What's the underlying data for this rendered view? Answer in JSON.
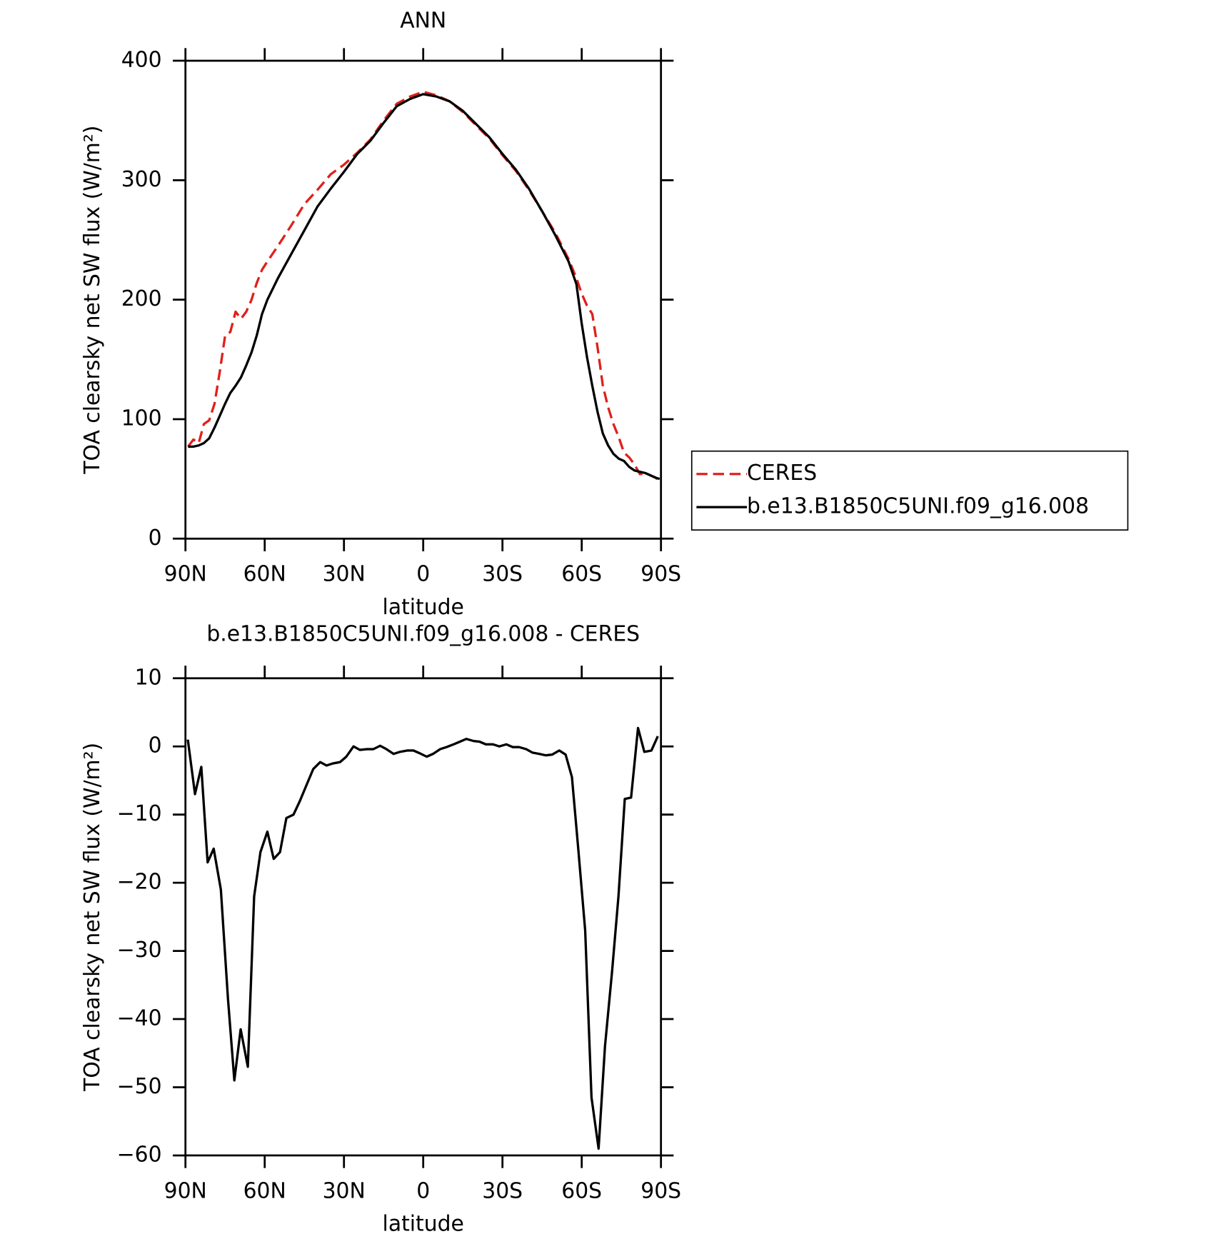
{
  "chart_data": [
    {
      "type": "line",
      "title": "ANN",
      "xlabel": "latitude",
      "ylabel": "TOA clearsky net SW flux (W/m²)",
      "xlim": [
        90,
        -90
      ],
      "xticks": [
        {
          "value": 90,
          "label": "90N"
        },
        {
          "value": 60,
          "label": "60N"
        },
        {
          "value": 30,
          "label": "30N"
        },
        0,
        {
          "value": -30,
          "label": "30S"
        },
        {
          "value": -60,
          "label": "60S"
        },
        {
          "value": -90,
          "label": "90S"
        }
      ],
      "ylim": [
        0,
        400
      ],
      "yticks": [
        0,
        100,
        200,
        300,
        400
      ],
      "legend": "right",
      "x": [
        89,
        87,
        85,
        83,
        81,
        79,
        77,
        75,
        73,
        71,
        69,
        67,
        65,
        63,
        61,
        59,
        55,
        50,
        45,
        40,
        35,
        30,
        25,
        20,
        15,
        10,
        5,
        0,
        -5,
        -10,
        -15,
        -20,
        -25,
        -30,
        -35,
        -40,
        -45,
        -50,
        -55,
        -58,
        -60,
        -62,
        -64,
        -66,
        -68,
        -70,
        -72,
        -74,
        -76,
        -78,
        -80,
        -82,
        -84,
        -86,
        -88,
        -89.5
      ],
      "series": [
        {
          "name": "CERES",
          "color": "#e0201b",
          "line_style": "dashed",
          "values": [
            77,
            83,
            80,
            96,
            99,
            113,
            140,
            170,
            173,
            190,
            184,
            190,
            200,
            214,
            225,
            232,
            245,
            262,
            280,
            292,
            305,
            313,
            323,
            334,
            350,
            364,
            370,
            374,
            371,
            366,
            357,
            346,
            335,
            321,
            308,
            292,
            274,
            256,
            234,
            218,
            205,
            195,
            188,
            160,
            128,
            110,
            96,
            85,
            72,
            68,
            62,
            54,
            55,
            53,
            51,
            48
          ]
        },
        {
          "name": "b.e13.B1850C5UNI.f09_g16.008",
          "color": "#000000",
          "line_style": "solid",
          "values": [
            77,
            77,
            78,
            80,
            84,
            93,
            103,
            113,
            122,
            128,
            135,
            145,
            156,
            170,
            188,
            200,
            218,
            238,
            258,
            278,
            293,
            307,
            322,
            333,
            348,
            362,
            368,
            372,
            370,
            366,
            358,
            347,
            336,
            322,
            309,
            293,
            274,
            254,
            232,
            213,
            180,
            152,
            128,
            106,
            88,
            78,
            71,
            67,
            65,
            60,
            57,
            56,
            55,
            53,
            51,
            50
          ]
        }
      ]
    },
    {
      "type": "line",
      "title": "b.e13.B1850C5UNI.f09_g16.008 - CERES",
      "xlabel": "latitude",
      "ylabel": "TOA clearsky net SW flux (W/m²)",
      "xlim": [
        90,
        -90
      ],
      "xticks": [
        {
          "value": 90,
          "label": "90N"
        },
        {
          "value": 60,
          "label": "60N"
        },
        {
          "value": 30,
          "label": "30N"
        },
        0,
        {
          "value": -30,
          "label": "30S"
        },
        {
          "value": -60,
          "label": "60S"
        },
        {
          "value": -90,
          "label": "90S"
        }
      ],
      "ylim": [
        -60,
        10
      ],
      "yticks": [
        {
          "value": 10,
          "label": "10"
        },
        {
          "value": 0,
          "label": "0"
        },
        {
          "value": -10,
          "label": "−10"
        },
        {
          "value": -20,
          "label": "−20"
        },
        {
          "value": -30,
          "label": "−30"
        },
        {
          "value": -40,
          "label": "−40"
        },
        {
          "value": -50,
          "label": "−50"
        },
        {
          "value": -60,
          "label": "−60"
        }
      ],
      "x": [
        89.1,
        86.4,
        84,
        81.6,
        79.3,
        76.6,
        73.9,
        71.5,
        69.1,
        66.4,
        64,
        61.6,
        59,
        56.6,
        54.2,
        51.8,
        49.1,
        46.7,
        44,
        41.6,
        39,
        36.6,
        34.2,
        31.5,
        29.1,
        26.4,
        24,
        21.3,
        18.9,
        16.3,
        13.9,
        11.2,
        8.8,
        6.1,
        3.7,
        1.3,
        -1.3,
        -3.7,
        -6.4,
        -8.8,
        -11.5,
        -13.9,
        -16.3,
        -19,
        -21.3,
        -23.7,
        -26.4,
        -28.8,
        -31.5,
        -33.9,
        -36.3,
        -39,
        -41.3,
        -44,
        -46.4,
        -48.8,
        -51.5,
        -53.9,
        -56.3,
        -58.7,
        -61.3,
        -63.7,
        -66.4,
        -68.8,
        -71.5,
        -73.9,
        -76.3,
        -78.7,
        -81.3,
        -83.7,
        -86.4,
        -88.8
      ],
      "series": [
        {
          "color": "#000000",
          "line_style": "solid",
          "values": [
            1,
            -7,
            -3,
            -17,
            -15,
            -21,
            -37,
            -49,
            -41.5,
            -47,
            -22,
            -15.5,
            -12.5,
            -16.5,
            -15.5,
            -10.5,
            -10,
            -8,
            -5.5,
            -3.3,
            -2.3,
            -2.8,
            -2.5,
            -2.3,
            -1.5,
            0,
            -0.5,
            -0.4,
            -0.4,
            0.1,
            -0.4,
            -1.1,
            -0.8,
            -0.6,
            -0.6,
            -1,
            -1.5,
            -1.1,
            -0.4,
            -0.1,
            0.3,
            0.7,
            1.1,
            0.8,
            0.7,
            0.3,
            0.3,
            0,
            0.3,
            -0.1,
            -0.1,
            -0.4,
            -0.9,
            -1.1,
            -1.3,
            -1.2,
            -0.6,
            -1.2,
            -4.5,
            -15,
            -27,
            -51.5,
            -59,
            -44,
            -33,
            -22,
            -7.7,
            -7.5,
            2.7,
            -0.8,
            -0.6,
            1.5
          ]
        }
      ]
    }
  ]
}
